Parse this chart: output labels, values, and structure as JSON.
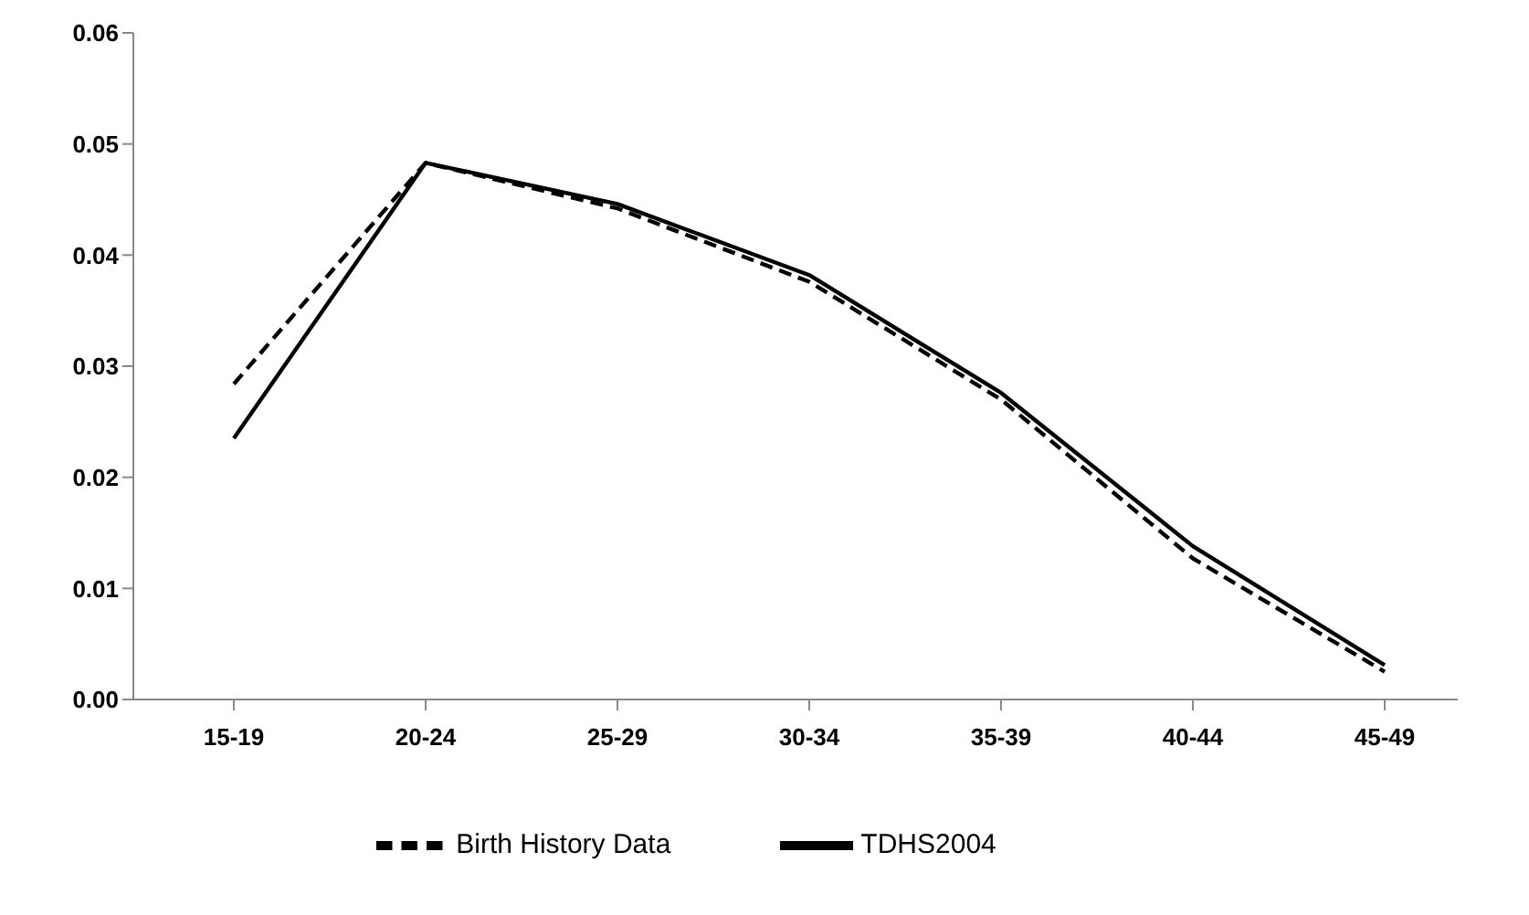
{
  "chart_data": {
    "type": "line",
    "categories": [
      "15-19",
      "20-24",
      "25-29",
      "30-34",
      "35-39",
      "40-44",
      "45-49"
    ],
    "series": [
      {
        "name": "Birth History  Data",
        "color": "#000000",
        "line_style": "dashed",
        "values": [
          0.0284,
          0.0483,
          0.0442,
          0.0376,
          0.027,
          0.0127,
          0.0025
        ]
      },
      {
        "name": "TDHS2004",
        "color": "#000000",
        "line_style": "solid",
        "values": [
          0.0235,
          0.0483,
          0.0446,
          0.0382,
          0.0276,
          0.0138,
          0.0031
        ]
      }
    ],
    "ylim": [
      0,
      0.06
    ],
    "yticks": [
      {
        "value": 0,
        "label": "0.00"
      },
      {
        "value": 0.01,
        "label": "0.01"
      },
      {
        "value": 0.02,
        "label": "0.02"
      },
      {
        "value": 0.03,
        "label": "0.03"
      },
      {
        "value": 0.04,
        "label": "0.04"
      },
      {
        "value": 0.05,
        "label": "0.05"
      },
      {
        "value": 0.06,
        "label": "0.06"
      }
    ],
    "grid": false,
    "legend": "bottom",
    "marker": "none"
  }
}
